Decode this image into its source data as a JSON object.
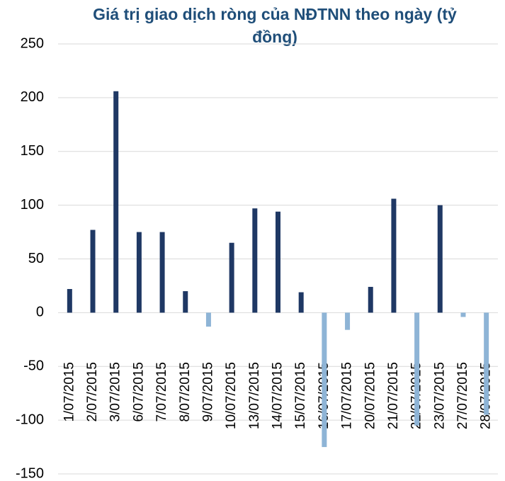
{
  "chart_data": {
    "type": "bar",
    "title": "Giá trị giao dịch ròng của NĐTNN theo ngày (tỷ đồng)",
    "categories": [
      "1/07/2015",
      "2/07/2015",
      "3/07/2015",
      "6/07/2015",
      "7/07/2015",
      "8/07/2015",
      "9/07/2015",
      "10/07/2015",
      "13/07/2015",
      "14/07/2015",
      "15/07/2015",
      "16/07/2015",
      "17/07/2015",
      "20/07/2015",
      "21/07/2015",
      "22/07/2015",
      "23/07/2015",
      "27/07/2015",
      "28/07/2015"
    ],
    "values": [
      22,
      77,
      206,
      75,
      75,
      20,
      -13,
      65,
      97,
      94,
      19,
      -125,
      -16,
      24,
      106,
      -105,
      100,
      -4,
      -95
    ],
    "color": "#1f3864",
    "negative_color": "#8eb4d6",
    "ylim": [
      -150,
      250
    ],
    "yticks": [
      -150,
      -100,
      -50,
      0,
      50,
      100,
      150,
      200,
      250
    ],
    "grid": true
  }
}
